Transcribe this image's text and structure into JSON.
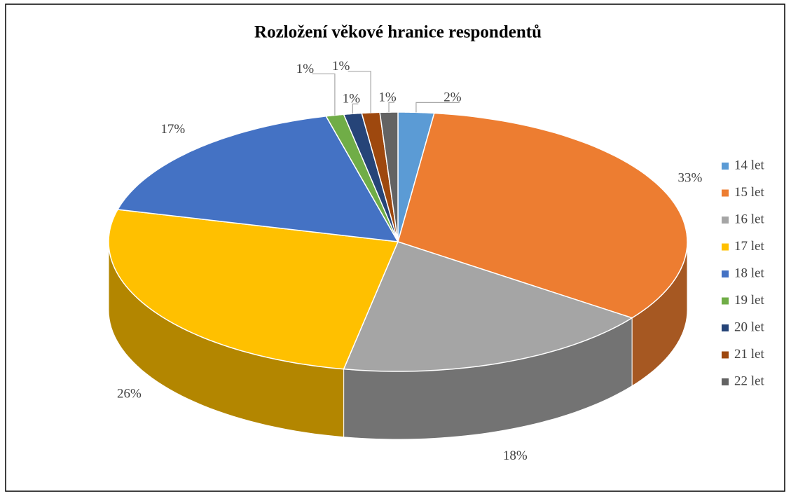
{
  "chart_data": {
    "type": "pie3d",
    "title": "Rozložení věkové hranice respondentů",
    "categories": [
      "14 let",
      "15 let",
      "16 let",
      "17 let",
      "18 let",
      "19 let",
      "20 let",
      "21 let",
      "22 let"
    ],
    "values": [
      2,
      33,
      18,
      26,
      17,
      1,
      1,
      1,
      1
    ],
    "value_labels": [
      "2%",
      "33%",
      "18%",
      "26%",
      "17%",
      "1%",
      "1%",
      "1%",
      "1%"
    ],
    "colors": [
      "#5b9bd5",
      "#ed7d31",
      "#a5a5a5",
      "#ffc000",
      "#4472c4",
      "#70ad47",
      "#264478",
      "#9e480e",
      "#636363"
    ],
    "legend": "right"
  }
}
